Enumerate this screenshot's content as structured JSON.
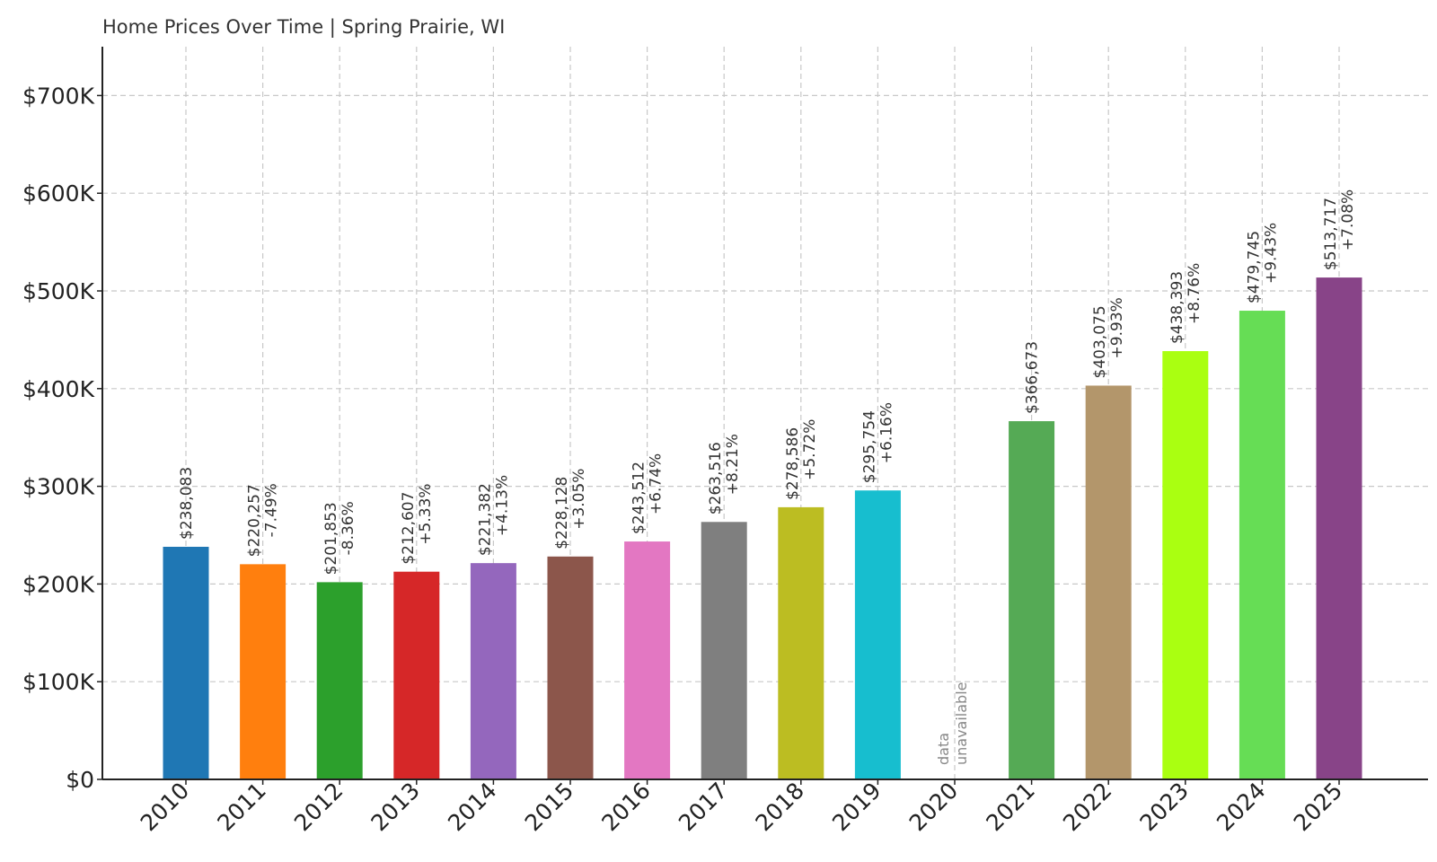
{
  "chart_data": {
    "type": "bar",
    "title": "Home Prices Over Time | Spring Prairie, WI",
    "xlabel": "",
    "ylabel": "",
    "ylim": [
      0,
      750000
    ],
    "yticks": [
      0,
      100000,
      200000,
      300000,
      400000,
      500000,
      600000,
      700000
    ],
    "ytick_labels": [
      "$0",
      "$100K",
      "$200K",
      "$300K",
      "$400K",
      "$500K",
      "$600K",
      "$700K"
    ],
    "grid": true,
    "categories": [
      "2010",
      "2011",
      "2012",
      "2013",
      "2014",
      "2015",
      "2016",
      "2017",
      "2018",
      "2019",
      "2020",
      "2021",
      "2022",
      "2023",
      "2024",
      "2025"
    ],
    "values": [
      238083,
      220257,
      201853,
      212607,
      221382,
      228128,
      243512,
      263516,
      278586,
      295754,
      null,
      366673,
      403075,
      438393,
      479745,
      513717
    ],
    "value_labels": [
      "$238,083",
      "$220,257",
      "$201,853",
      "$212,607",
      "$221,382",
      "$228,128",
      "$243,512",
      "$263,516",
      "$278,586",
      "$295,754",
      "",
      "$366,673",
      "$403,075",
      "$438,393",
      "$479,745",
      "$513,717"
    ],
    "change_labels": [
      "",
      "-7.49%",
      "-8.36%",
      "+5.33%",
      "+4.13%",
      "+3.05%",
      "+6.74%",
      "+8.21%",
      "+5.72%",
      "+6.16%",
      "",
      "",
      "+9.93%",
      "+8.76%",
      "+9.43%",
      "+7.08%"
    ],
    "missing_label": [
      "data",
      "unavailable"
    ],
    "colors": [
      "#1f77b4",
      "#ff7f0e",
      "#2ca02c",
      "#d62728",
      "#9467bd",
      "#8c564b",
      "#e377c2",
      "#7f7f7f",
      "#bcbd22",
      "#17becf",
      "#ffffff",
      "#55aa55",
      "#b3966b",
      "#aaff11",
      "#66dd55",
      "#884488"
    ]
  }
}
